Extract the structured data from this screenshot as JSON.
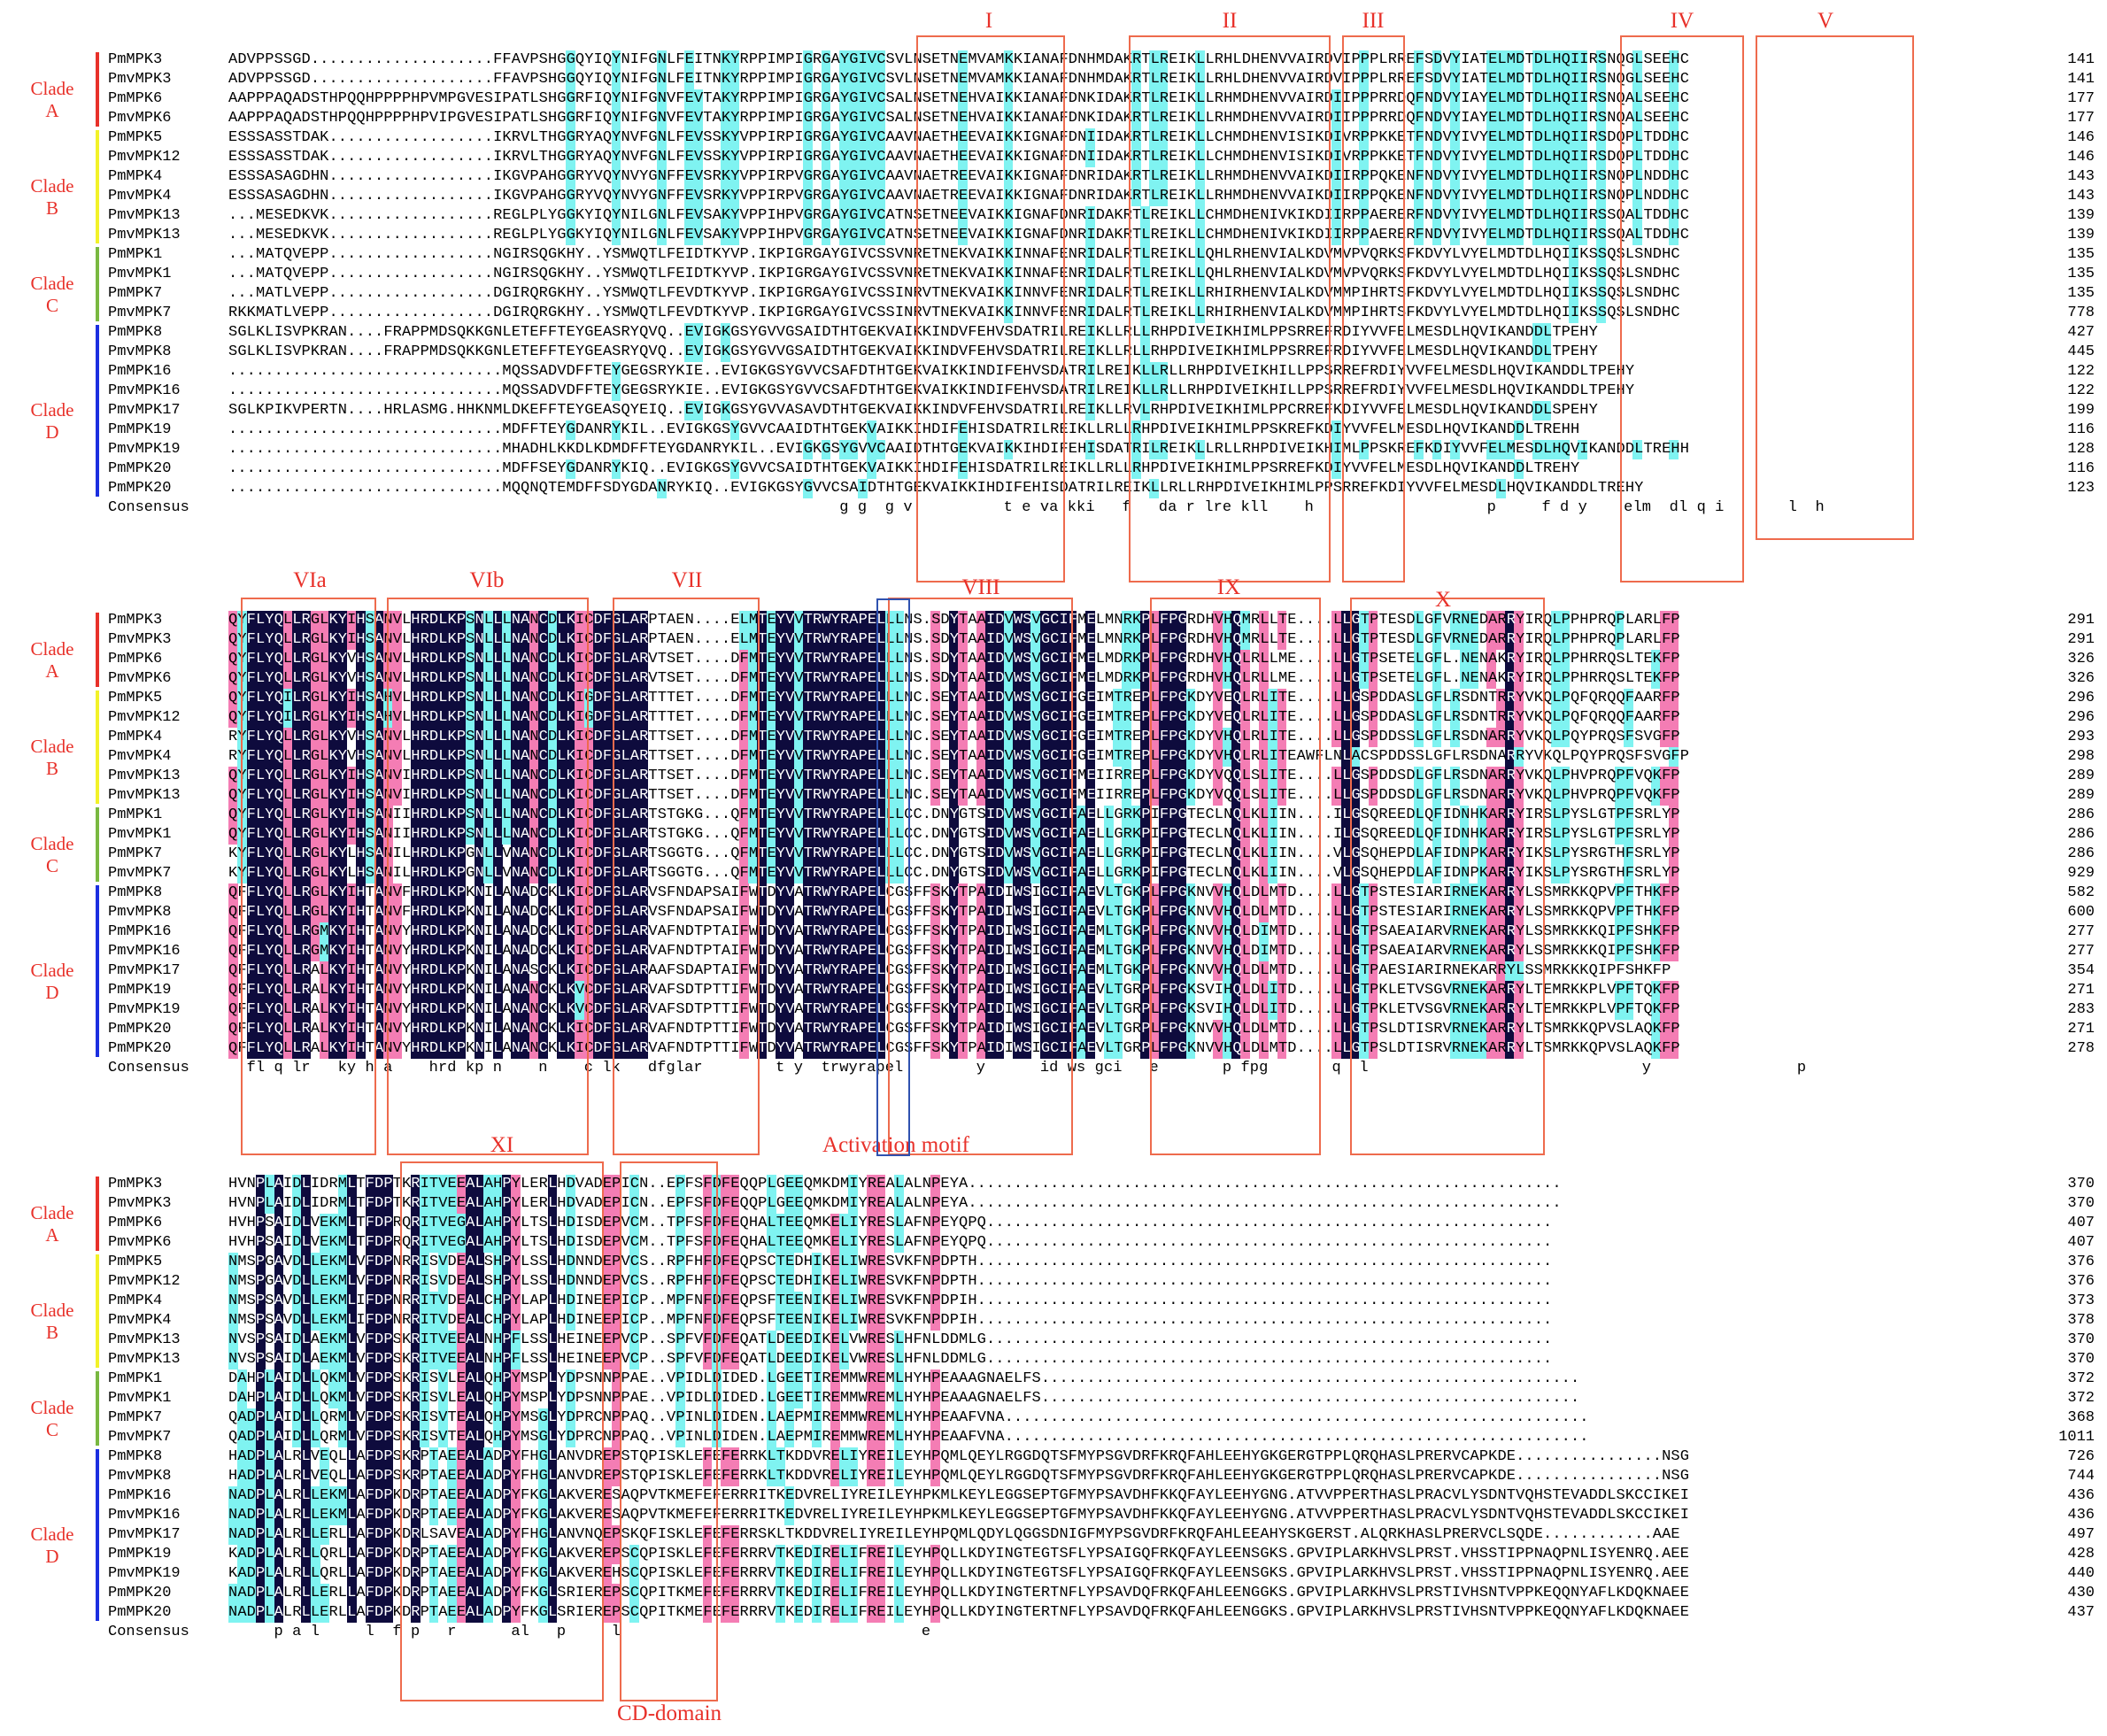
{
  "colors": {
    "identical": "#0e0b3d",
    "high": "#f47db4",
    "mid": "#7ff3f1",
    "motif_box": "#ee6b4d",
    "label": "#e8312a",
    "tey": "#2f52b0",
    "cladeA": "#e8312a",
    "cladeB": "#f2f229",
    "cladeC": "#79b840",
    "cladeD": "#1b2fe0"
  },
  "consensus_label": "Consensus",
  "sequence_names": [
    "PmMPK3",
    "PmvMPK3",
    "PmMPK6",
    "PmvMPK6",
    "PmMPK5",
    "PmvMPK12",
    "PmMPK4",
    "PmvMPK4",
    "PmvMPK13",
    "PmvMPK13",
    "PmMPK1",
    "PmvMPK1",
    "PmMPK7",
    "PmvMPK7",
    "PmMPK8",
    "PmvMPK8",
    "PmMPK16",
    "PmvMPK16",
    "PmvMPK17",
    "PmMPK19",
    "PmvMPK19",
    "PmMPK20",
    "PmMPK20"
  ],
  "clades": [
    {
      "label": "Clade A",
      "color": "#e8312a"
    },
    {
      "label": "Clade B",
      "color": "#f2f229"
    },
    {
      "label": "Clade C",
      "color": "#79b840"
    },
    {
      "label": "Clade D",
      "color": "#1b2fe0"
    }
  ],
  "blocks": [
    {
      "rows": [
        "ADVPPSSGD....................FFAVPSHGGQYIQYNIFGNLFEITNKYRPPIMPIGRGAYGIVCSVLNSETNEMVAMKKIANAFDNHMDAKRTLREIKLLRHLDHENVVAIRDVIPPPLRREFSDVYIATELMDTDLHQIIRSNQGLSEEHC",
        "ADVPPSSGD....................FFAVPSHGGQYIQYNIFGNLFEITNKYRPPIMPIGRGAYGIVCSVLNSETNEMVAMKKIANAFDNHMDAKRTLREIKLLRHLDHENVVAIRDVIPPPLRREFSDVYIATELMDTDLHQIIRSNQGLSEEHC",
        "AAPPPAQADSTHPQQHPPPPHPVMPGVESIPATLSHGGRFIQYNIFGNVFEVTAKYRPPIMPIGRGAYGIVCSALNSETNEHVAIKKIANAFDNKIDAKRTLREIKLLRHMDHENVVAIRDIIPPPRRDQFNDVYIAYELMDTDLHQIIRSNQALSEEHC",
        "AAPPPAQADSTHPQQHPPPPHPVIPGVESIPATLSHGGRFIQYNIFGNVFEVTAKYRPPIMPIGRGAYGIVCSALNSETNEHVAIKKIANAFDNKIDAKRTLREIKLLRHMDHENVVAIRDIIPPPRRDQFNDVYIAYELMDTDLHQIIRSNQALSEEHC",
        "ESSSASSTDAK..................IKRVLTHGGRYAQYNVFGNLFEVSSKYVPPIRPIGRGAYGIVCAAVNAETHEEVAIKKIGNAFDNIIDAKRTLREIKLLCHMDHENVISIKDIVRPPKKETFNDVYIVYELMDTDLHQIIRSDQPLTDDHC",
        "ESSSASSTDAK..................IKRVLTHGGRYAQYNVFGNLFEVSSKYVPPIRPIGRGAYGIVCAAVNAETHEEVAIKKIGNAFDNIIDAKRTLREIKLLCHMDHENVISIKDIVRPPKKETFNDVYIVYELMDTDLHQIIRSDQPLTDDHC",
        "ESSSASAGDHN..................IKGVPAHGGRYVQYNVYGNFFEVSRKYVPPIRPVGRGAYGIVCAAVNAETREEVAIKKIGNAFDNRIDAKRTLREIKLLRHMDHENVVAIKDIIRPPQKENFNDVYIVYELMDTDLHQIIRSNQPLNDDHC",
        "ESSSASAGDHN..................IKGVPAHGGRYVQYNVYGNFFEVSRKYVPPIRPVGRGAYGIVCAAVNAETREEVAIKKIGNAFDNRIDAKRTLREIKLLRHMDHENVVAIKDIIRPPQKENFNDVYIVYELMDTDLHQIIRSNQPLNDDHC",
        "...MESEDKVK..................REGLPLYGGKYIQYNILGNLFEVSAKYVPPIHPVGRGAYGIVCATNSETNEEVAIKKIGNAFDNRIDAKRTLREIKLLCHMDHENIVKIKDIIRPPAERERFNDVYIVYELMDTDLHQIIRSSQALTDDHC",
        "...MESEDKVK..................REGLPLYGGKYIQYNILGNLFEVSAKYVPPIHPVGRGAYGIVCATNSETNEEVAIKKIGNAFDNRIDAKRTLREIKLLCHMDHENIVKIKDIIRPPAERERFNDVYIVYELMDTDLHQIIRSSQALTDDHC",
        "...MATQVEPP..................NGIRSQGKHY..YSMWQTLFEIDTKYVP.IKPIGRGAYGIVCSSVNRETNEKVAIKKINNAFENRIDALRTLREIKLLQHLRHENVIALKDVMVPVQRKSFKDVYLVYELMDTDLHQIIKSSQSLSNDHC",
        "...MATQVEPP..................NGIRSQGKHY..YSMWQTLFEIDTKYVP.IKPIGRGAYGIVCSSVNRETNEKVAIKKINNAFENRIDALRTLREIKLLQHLRHENVIALKDVMVPVQRKSFKDVYLVYELMDTDLHQIIKSSQSLSNDHC",
        "...MATLVEPP..................DGIRQRGKHY..YSMWQTLFEVDTKYVP.IKPIGRGAYGIVCSSINRVTNEKVAIKKINNVFENRIDALRTLREIKLLRHIRHENVIALKDVMMPIHRTSFKDVYLVYELMDTDLHQIIKSSQSLSNDHC",
        "RKKMATLVEPP..................DGIRQRGKHY..YSMWQTLFEVDTKYVP.IKPIGRGAYGIVCSSINRVTNEKVAIKKINNVFENRIDALRTLREIKLLRHIRHENVIALKDVMMPIHRTSFKDVYLVYELMDTDLHQIIKSSQSLSNDHC",
        "SGLKLISVPKRAN....FRAPPMDSQKKGNLETEFFTEYGEASRYQVQ..EVIGKGSYGVVGSAIDTHTGEKVAIKKINDVFEHVSDATRILREIKLLRLLRHPDIVEIKHIMLPPSRREFRDIYVVFELMESDLHQVIKANDDLTPEHY",
        "SGLKLISVPKRAN....FRAPPMDSQKKGNLETEFFTEYGEASRYQVQ..EVIGKGSYGVVGSAIDTHTGEKVAIKKINDVFEHVSDATRILREIKLLRLLRHPDIVEIKHIMLPPSRREFRDIYVVFELMESDLHQVIKANDDLTPEHY",
        "..............................MQSSADVDFFTEYGEGSRYKIE..EVIGKGSYGVVCSAFDTHTGEKVAIKKINDIFEHVSDATRILREIKLLRLLRHPDIVEIKHILLPPSRREFRDIYVVFELMESDLHQVIKANDDLTPEHY",
        "..............................MQSSADVDFFTEYGEGSRYKIE..EVIGKGSYGVVCSAFDTHTGEKVAIKKINDIFEHVSDATRILREIKLLRLLRHPDIVEIKHILLPPSRREFRDIYVVFELMESDLHQVIKANDDLTPEHY",
        "SGLKPIKVPERTN....HRLASMG.HHKNMLDKEFFTEYGEASQYEIQ..EVIGKGSYGVVASAVDTHTGEKVAIKKINDVFEHVSDATRILREIKLLRVLRHPDIVEIKHIMLPPCRREFKDIYVVFELMESDLHQVIKANDDLSPEHY",
        "..............................MDFFTEYGDANRYKIL..EVIGKGSYGVVCAAIDTHTGEKVAIKKIHDIFEHISDATRILREIKLLRLLRHPDIVEIKHIMLPPSKREFKDIYVVFELMESDLHQVIKANDDLTREHH",
        "..............................MHADHLKKDLKDMDFFTEYGDANRYKIL..EVIGKGSYGVVCAAIDTHTGEKVAIKKIHDIFEHISDATRILREIKLLRLLRHPDIVEIKHIMLPPSKREFKDIYVVFELMESDLHQVIKANDDLTREHH",
        "..............................MDFFSEYGDANRYKIQ..EVIGKGSYGVVCSAIDTHTGEKVAIKKIHDIFEHISDATRILREIKLLRLLRHPDIVEIKHIMLPPSRREFKDIYVVFELMESDLHQVIKANDDLTREHY",
        "..............................MQQNQTEMDFFSDYGDANRYKIQ..EVIGKGSYGVVCSAIDTHTGEKVAIKKIHDIFEHISDATRILREIKLLRLLRHPDIVEIKHIMLPPSRREFKDIYVVFELMESDLHQVIKANDDLTREHY"
      ],
      "consensus": "                                                                   g g  g v          t e va kki   f   da r lre kll    h                   p     f d y    elm  dl q i       l  h",
      "numbers": [
        "141",
        "141",
        "177",
        "177",
        "146",
        "146",
        "143",
        "143",
        "139",
        "139",
        "135",
        "135",
        "135",
        "778",
        "427",
        "445",
        "122",
        "122",
        "199",
        "116",
        "128",
        "116",
        "123"
      ]
    },
    {
      "rows": [
        "QYFLYQLLRGLKYIHSANVLHRDLKPSNLLLNANCDLKICDFGLARPTAEN....ELMTEYVVTRWYRAPELLLNS.SDYTAAIDVWSVGCIFMELMNRKPLFPGRDHVHQMRLLTE....LLGTPTESDLGFVRNEDARRYIRQLPPHPRQPLARLFP",
        "QYFLYQLLRGLKYIHSANVLHRDLKPSNLLLNANCDLKICDFGLARPTAEN....ELMTEYVVTRWYRAPELLLNS.SDYTAAIDVWSVGCIFMELMNRKPLFPGRDHVHQMRLLTE....LLGTPTESDLGFVRNEDARRYIRQLPPHPRQPLARLFP",
        "QYFLYQLLRGLKYVHSANVLHRDLKPSNLLLNANCDLKICDFGLARVTSET....DFMTEYVVTRWYRAPELLLNS.SDYTAAIDVWSVGCIFMELMDRKPLFPGRDHVHQLRLLME....LLGTPSETELGFL.NENAKRYIRQLPPHRRQSLTEKFP",
        "QYFLYQLLRGLKYVHSANVLHRDLKPSNLLLNANCDLKICDFGLARVTSET....DFMTEYVVTRWYRAPELLLNS.SDYTAAIDVWSVGCIFMELMDRKPLFPGRDHVHQLRLLME....LLGTPSETELGFL.NENAKRYIRQLPPHRRQSLTEKFP",
        "QYFLYQILRGLKYIHSAHVLHRDLKPSNLLLNANCDLKIGDFGLARTTTET....DFMTEYVVTRWYRAPELLLNC.SEYTAAIDVWSVGCIFGEIMTREPLFPGKDYVEQLRLITE....LLGSPDDASLGFLRSDNTRRYVKQLPQFQRQQFAARFP",
        "QYFLYQILRGLKYIHSAHVLHRDLKPSNLLLNANCDLKIGDFGLARTTTET....DFMTEYVVTRWYRAPELLLNC.SEYTAAIDVWSVGCIFGEIMTREPLFPGKDYVEQLRLITE....LLGSPDDASLGFLRSDNTRRYVKQLPQFQRQQFAARFP",
        "RYFLYQLLRGLKYVHSANVLHRDLKPSNLLLNANCDLKICDFGLARTTSET....DFMTEYVVTRWYRAPELLLNC.SEYTAAIDVWSVGCIFGEIMTREPLFPGKDYVHQLRLITE....LLGSPDDSSLGFLRSDNARRYVKQLPQYPRQSFSVGFP",
        "RYFLYQLLRGLKYVHSANVLHRDLKPSNLLLNANCDLKICDFGLARTTSET....DFMTEYVVTRWYRAPELLLNC.SEYTAAIDVWSVGCIFGEIMTREPLFPGKDYVHQLRLITEAWFLNLACSPDDSSLGFLRSDNARRYVKQLPQYPRQSFSVGFP",
        "QYFLYQLLRGLKYIHSANVIHRDLKPSNLLLNANCDLKICDFGLARTTSET....DFMTEYVVTRWYRAPELLLNC.SEYTAAIDVWSVGCIFMEIIRREPLFPGKDYVQQLSLITE....LLGSPDDSDLGFLRSDNARRYVKQLPHVPRQPFVQKFP",
        "QYFLYQLLRGLKYIHSANVIHRDLKPSNLLLNANCDLKICDFGLARTTSET....DFMTEYVVTRWYRAPELLLNC.SEYTAAIDVWSVGCIFMEIIRREPLFPGKDYVQQLSLITE....LLGSPDDSDLGFLRSDNARRYVKQLPHVPRQPFVQKFP",
        "QYFLYQLLRGLKYIHSANIIHRDLKPSNLLLNANCDLKICDFGLARTSTGKG...QFMTEYVVTRWYRAPELLLCC.DNYGTSIDVWSVGCIFAELLGRKPIFPGTECLNQLKLIIN....ILGSQREEDLQFIDNHKARRYIRSLPYSLGTPFSRLYP",
        "QYFLYQLLRGLKYIHSANIIHRDLKPSNLLLNANCDLKICDFGLARTSTGKG...QFMTEYVVTRWYRAPELLLCC.DNYGTSIDVWSVGCIFAELLGRKPIFPGTECLNQLKLIIN....ILGSQREEDLQFIDNHKARRYIRSLPYSLGTPFSRLYP",
        "KYFLYQLLRGLKYLHSANILHRDLKPGNLLVNANCDLKICDFGLARTSGGTG...QFMTEYVVTRWYRAPELLLCC.DNYGTSIDVWSVGCIFAELLGRKPIFPGTECLNQLKLIIN....VLGSQHEPDLAFIDNPKARRYIKSLPYSRGTHFSRLYP",
        "KYFLYQLLRGLKYLHSANILHRDLKPGNLLVNANCDLKICDFGLARTSGGTG...QFMTEYVVTRWYRAPELLLCC.DNYGTSIDVWSVGCIFAELLGRKPIFPGTECLNQLKLIIN....VLGSQHEPDLAFIDNPKARRYIKSLPYSRGTHFSRLYP",
        "QFFLYQLLRGLKYIHTANVFHRDLKPKNILANADCKLKICDFGLARVSFNDAPSAIFWTDYVATRWYRAPELCGSFFSKYTPAIDIWSIGCIFAEVLTGKPLFPGKNVVHQLDLMTD....LLGTPSTESIARIRNEKARRYLSSMRKKQPVPFTHKFP",
        "QFFLYQLLRGLKYIHTANVFHRDLKPKNILANADCKLKICDFGLARVSFNDAPSAIFWTDYVATRWYRAPELCGSFFSKYTPAIDIWSIGCIFAEVLTGKPLFPGKNVVHQLDLMTD....LLGTPSTESIARIRNEKARRYLSSMRKKQPVPFTHKFP",
        "QFFLYQLLRGMKYIHTANVYHRDLKPKNILANADCKLKICDFGLARVAFNDTPTAIFWTDYVATRWYRAPELCGSFFSKYTPAIDIWSIGCIFAEMLTGKPLFPGKNVVHQLDIMTD....LLGTPSAEAIARVRNEKARRYLSSMRKKKQIPFSHKFP",
        "QFFLYQLLRGMKYIHTANVYHRDLKPKNILANADCKLKICDFGLARVAFNDTPTAIFWTDYVATRWYRAPELCGSFFSKYTPAIDIWSIGCIFAEMLTGKPLFPGKNVVHQLDIMTD....LLGTPSAEAIARVRNEKARRYLSSMRKKKQIPFSHKFP",
        "QFFLYQLLRALKYIHTANVYHRDLKPKNILANASCKLKICDFGLARAAFSDAPTAIFWTDYVATRWYRAPELCGSFFSKYTPAIDIWSIGCIFAEMLTGKPLFPGKNVVHQLDLMTD....LLGTPAESIARIRNEKARRYLSSMRKKKQIPFSHKFP",
        "QFFLYQLLRALKYIHTANVYHRDLKPKNILANANCKLKVCDFGLARVAFSDTPTTIFWTDYVATRWYRAPELCGSFFSKYTPAIDIWSIGCIFAEVLTGRPLFPGKSVIHQLDLITD....LLGTPKLETVSGVRNEKARRYLTEMRKKPLVPFTQKFP",
        "QFFLYQLLRALKYIHTANVYHRDLKPKNILANANCKLKVCDFGLARVAFSDTPTTIFWTDYVATRWYRAPELCGSFFSKYTPAIDIWSIGCIFAEVLTGRPLFPGKSVIHQLDLITD....LLGTPKLETVSGVRNEKARRYLTEMRKKPLVPFTQKFP",
        "QFFLYQLLRALKYIHTANVYHRDLKPKNILANANCKLKICDFGLARVAFNDTPTTIFWTDYVATRWYRAPELCGSFFSKYTPAIDIWSIGCIFAEVLTGRPLFPGKNVVHQLDLMTD....LLGTPSLDTISRVRNEKARRYLTSMRKKQPVSLAQKFP",
        "QFFLYQLLRALKYIHTANVYHRDLKPKNILANANCKLKICDFGLARVAFNDTPTTIFWTDYVATRWYRAPELCGSFFSKYTPAIDIWSIGCIFAEVLTGRPLFPGKNVVHQLDLMTD....LLGTPSLDTISRVRNEKARRYLTSMRKKQPVSLAQKFP"
      ],
      "consensus": "  fl q lr   ky h a    hrd kp n    n    c lk   dfglar        t y  trwyrapel        y      id ws gci   e       p fpg       q  l                              y                p",
      "numbers": [
        "291",
        "291",
        "326",
        "326",
        "296",
        "296",
        "293",
        "298",
        "289",
        "289",
        "286",
        "286",
        "286",
        "929",
        "582",
        "600",
        "277",
        "277",
        "354",
        "271",
        "283",
        "271",
        "278"
      ]
    },
    {
      "rows": [
        "HVNPLAIDLIDRMLTFDPTKRITVEEALAHPYLERLHDVADEPICN..EPFSFDFEQQPLGEEQMKDMIYREALALNPEYA.................................................................",
        "HVNPLAIDLIDRMLTFDPTKRITVEEALAHPYLERLHDVADEPICN..EPFSFDFEQQPLGEEQMKDMIYREALALNPEYA.................................................................",
        "HVHPSAIDLVEKMLTFDPRQRITVEGALAHPYLTSLHDISDEPVCM..TPFSFDFEQHALTEEQMKELIYRESLAFNPEYQPQ..............................................................",
        "HVHPSAIDLVEKMLTFDPRQRITVEGALAHPYLTSLHDISDEPVCM..TPFSFDFEQHALTEEQMKELIYRESLAFNPEYQPQ..............................................................",
        "NMSPGAVDLLEKMLVFDPNRRISVDEALSHPYLSSLHDNNDEPVCS..RPFHFDFEQPSCTEDHIKELIWRESVKFNPDPTH...............................................................",
        "NMSPGAVDLLEKMLVFDPNRRISVDEALSHPYLSSLHDNNDEPVCS..RPFHFDFEQPSCTEDHIKELIWRESVKFNPDPTH...............................................................",
        "NMSPSAVDLLEKMLIFDPNRRITVDEALCHPYLAPLHDINEEPICP..MPFNFDFEQPSFTEENIKELIWRESVKFNPDPIH...............................................................",
        "NMSPSAVDLLEKMLIFDPNRRITVDEALCHPYLAPLHDINEEPICP..MPFNFDFEQPSFTEENIKELIWRESVKFNPDPIH...............................................................",
        "NVSPSAIDLAEKMLVFDPSKRITVEEALNHPFLSSLHEINEEPVCP..SPFVFDFEQATLDEEDIKELVWRESLHFNLDDMLG..............................................................",
        "NVSPSAIDLAEKMLVFDPSKRITVEEALNHPFLSSLHEINEEPVCP..SPFVFDFEQATLDEEDIKELVWRESLHFNLDDMLG..............................................................",
        "DAHPLAIDLLQKMLVFDPSKRISVLEALQHPYMSPLYDPSNNPPAE..VPIDLDIDED.LGEETIREMMWREMLHYHPEAAAGNAELFS...........................................................",
        "DAHPLAIDLLQKMLVFDPSKRISVLEALQHPYMSPLYDPSNNPPAE..VPIDLDIDED.LGEETIREMMWREMLHYHPEAAAGNAELFS...........................................................",
        "QADPLAIDLLQRMLVFDPSKRISVTEALQHPYMSGLYDPRCNPPAQ..VPINLDIDEN.LAEPMIREMMWREMLHYHPEAAFVNA................................................................",
        "QADPLAIDLLQRMLVFDPSKRISVTEALQHPYMSGLYDPRCNPPAQ..VPINLDIDEN.LAEPMIREMMWREMLHYHPEAAFVNA................................................................",
        "HADPLALRLVEQLLAFDPSKRPTAEEALADPYFHGLANVDREPSTQPISKLEFEFERRKLTKDDVRELIYREILEYHPQMLQEYLRGGDQTSFMYPSGVDRFKRQFAHLEEHYGKGERGTPPLQRQHASLPRERVCAPKDE................NSG",
        "HADPLALRLVEQLLAFDPSKRPTAEEALADPYFHGLANVDREPSTQPISKLEFEFERRKLTKDDVRELIYREILEYHPQMLQEYLRGGDQTSFMYPSGVDRFKRQFAHLEEHYGKGERGTPPLQRQHASLPRERVCAPKDE................NSG",
        "NADPLALRLLEKMLAFDPKDRPTAEEALADPYFKGLAKVERESAQPVTKMEFEFERRRITKEDVRELIYREILEYHPKMLKEYLEGGSEPTGFMYPSAVDHFKKQFAYLEEHYGNG.ATVVPPERTHASLPRACVLYSDNTVQHSTEVADDLSKCCIKEI",
        "NADPLALRLLEKMLAFDPKDRPTAEEALADPYFKGLAKVERESAQPVTKMEFEFERRRITKEDVRELIYREILEYHPKMLKEYLEGGSEPTGFMYPSAVDHFKKQFAYLEEHYGNG.ATVVPPERTHASLPRACVLYSDNTVQHSTEVADDLSKCCIKEI",
        "NADPLALRLLERLLAFDPKDRLSAVEALADPYFHGLANVNQEPSKQFISKLEFEFERRSKLTKDDVRELIYREILEYHPQMLQDYLQGGSDNIGFMYPSGVDRFKRQFAHLEEAHYSKGERST.ALQRKHASLPRERVCLSQDE............AAE",
        "KADPLALRLLQRLLAFDPKDRPTAEEALADPYFKGLAKVEREPSCQPISKLEFEFERRRVTKEDIRELIFREILEYHPQLLKDYINGTEGTSFLYPSAIGQFRKQFAYLEENSGKS.GPVIPLARKHVSLPRST.VHSSTIPPNAQPNLISYENRQ.AEE",
        "KADPLALRLLQRLLAFDPKDRPTAEEALADPYFKGLAKVEREHSCQPISKLEFEFERRRVTKEDIRELIFREILEYHPQLLKDYINGTEGTSFLYPSAIGQFRKQFAYLEENSGKS.GPVIPLARKHVSLPRST.VHSSTIPPNAQPNLISYENRQ.AEE",
        "NADPLALRLLERLLAFDPKDRPTAEEALADPYFKGLSRIEREPSCQPITKMEFEFERRRVTKEDIRELIFREILEYHPQLLKDYINGTERTNFLYPSAVDQFRKQFAHLEENGGKS.GPVIPLARKHVSLPRSTIVHSNTVPPKEQQNYAFLKDQKNAEE",
        "NADPLALRLLERLLAFDPKDRPTAEEALADPYFKGLSRIEREPSCQPITKMEFEFERRRVTKEDIRELIFREILEYHPQLLKDYINGTERTNFLYPSAVDQFRKQFAHLEENGGKS.GPVIPLARKHVSLPRSTIVHSNTVPPKEQQNYAFLKDQKNAEE"
      ],
      "consensus": "     p a l     l  f p   r      al   p     l                                 e",
      "numbers": [
        "370",
        "370",
        "407",
        "407",
        "376",
        "376",
        "373",
        "378",
        "370",
        "370",
        "372",
        "372",
        "368",
        "1011",
        "726",
        "744",
        "436",
        "436",
        "497",
        "428",
        "440",
        "430",
        "437"
      ]
    }
  ],
  "motifs": [
    {
      "label": "I"
    },
    {
      "label": "II"
    },
    {
      "label": "III"
    },
    {
      "label": "IV"
    },
    {
      "label": "V"
    },
    {
      "label": "VIa"
    },
    {
      "label": "VIb"
    },
    {
      "label": "VII"
    },
    {
      "label": "VIII"
    },
    {
      "label": "IX"
    },
    {
      "label": "X"
    },
    {
      "label": "XI"
    },
    {
      "label": "Activation motif"
    },
    {
      "label": "CD-domain"
    }
  ]
}
